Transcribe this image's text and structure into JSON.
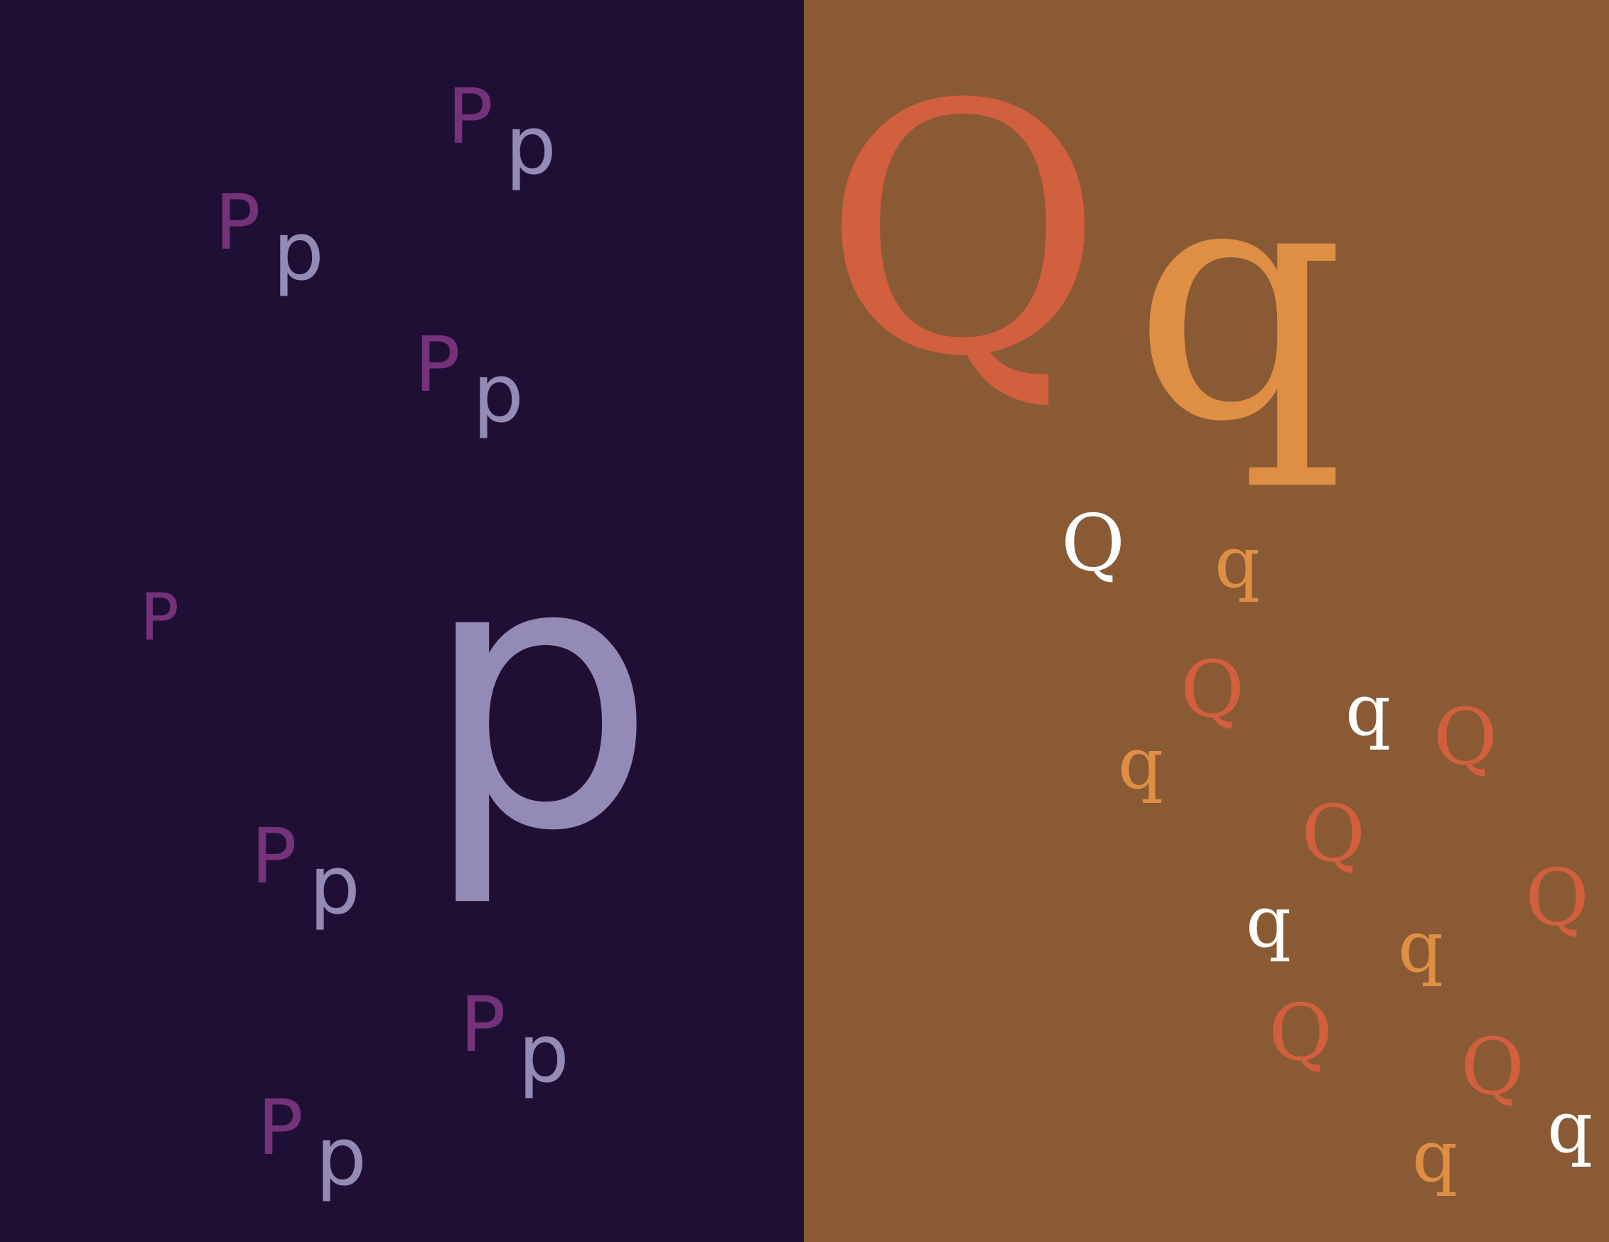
{
  "colors": {
    "left_background": "#200f34",
    "right_background": "#8a5a35",
    "p_upper": "#74327a",
    "p_lower": "#938bb5",
    "q_upper": "#d25f3e",
    "q_lower": "#df8f44",
    "q_white": "#ffffff"
  },
  "left_panel": {
    "hero": {
      "upper": "P",
      "lower": "p"
    },
    "pairs": [
      {
        "upper": "P",
        "lower": "p"
      },
      {
        "upper": "P",
        "lower": "p"
      },
      {
        "upper": "P",
        "lower": "p"
      },
      {
        "upper": "P",
        "lower": "p"
      },
      {
        "upper": "P",
        "lower": "p"
      },
      {
        "upper": "P",
        "lower": "p"
      }
    ]
  },
  "right_panel": {
    "hero": {
      "upper": "Q",
      "lower": "q"
    },
    "letters": [
      {
        "char": "Q",
        "color": "white"
      },
      {
        "char": "q",
        "color": "orange"
      },
      {
        "char": "Q",
        "color": "red"
      },
      {
        "char": "q",
        "color": "white"
      },
      {
        "char": "Q",
        "color": "red"
      },
      {
        "char": "q",
        "color": "orange"
      },
      {
        "char": "Q",
        "color": "red"
      },
      {
        "char": "q",
        "color": "white"
      },
      {
        "char": "Q",
        "color": "red"
      },
      {
        "char": "q",
        "color": "orange"
      },
      {
        "char": "Q",
        "color": "red"
      },
      {
        "char": "Q",
        "color": "red"
      },
      {
        "char": "q",
        "color": "white"
      },
      {
        "char": "q",
        "color": "orange"
      }
    ]
  }
}
